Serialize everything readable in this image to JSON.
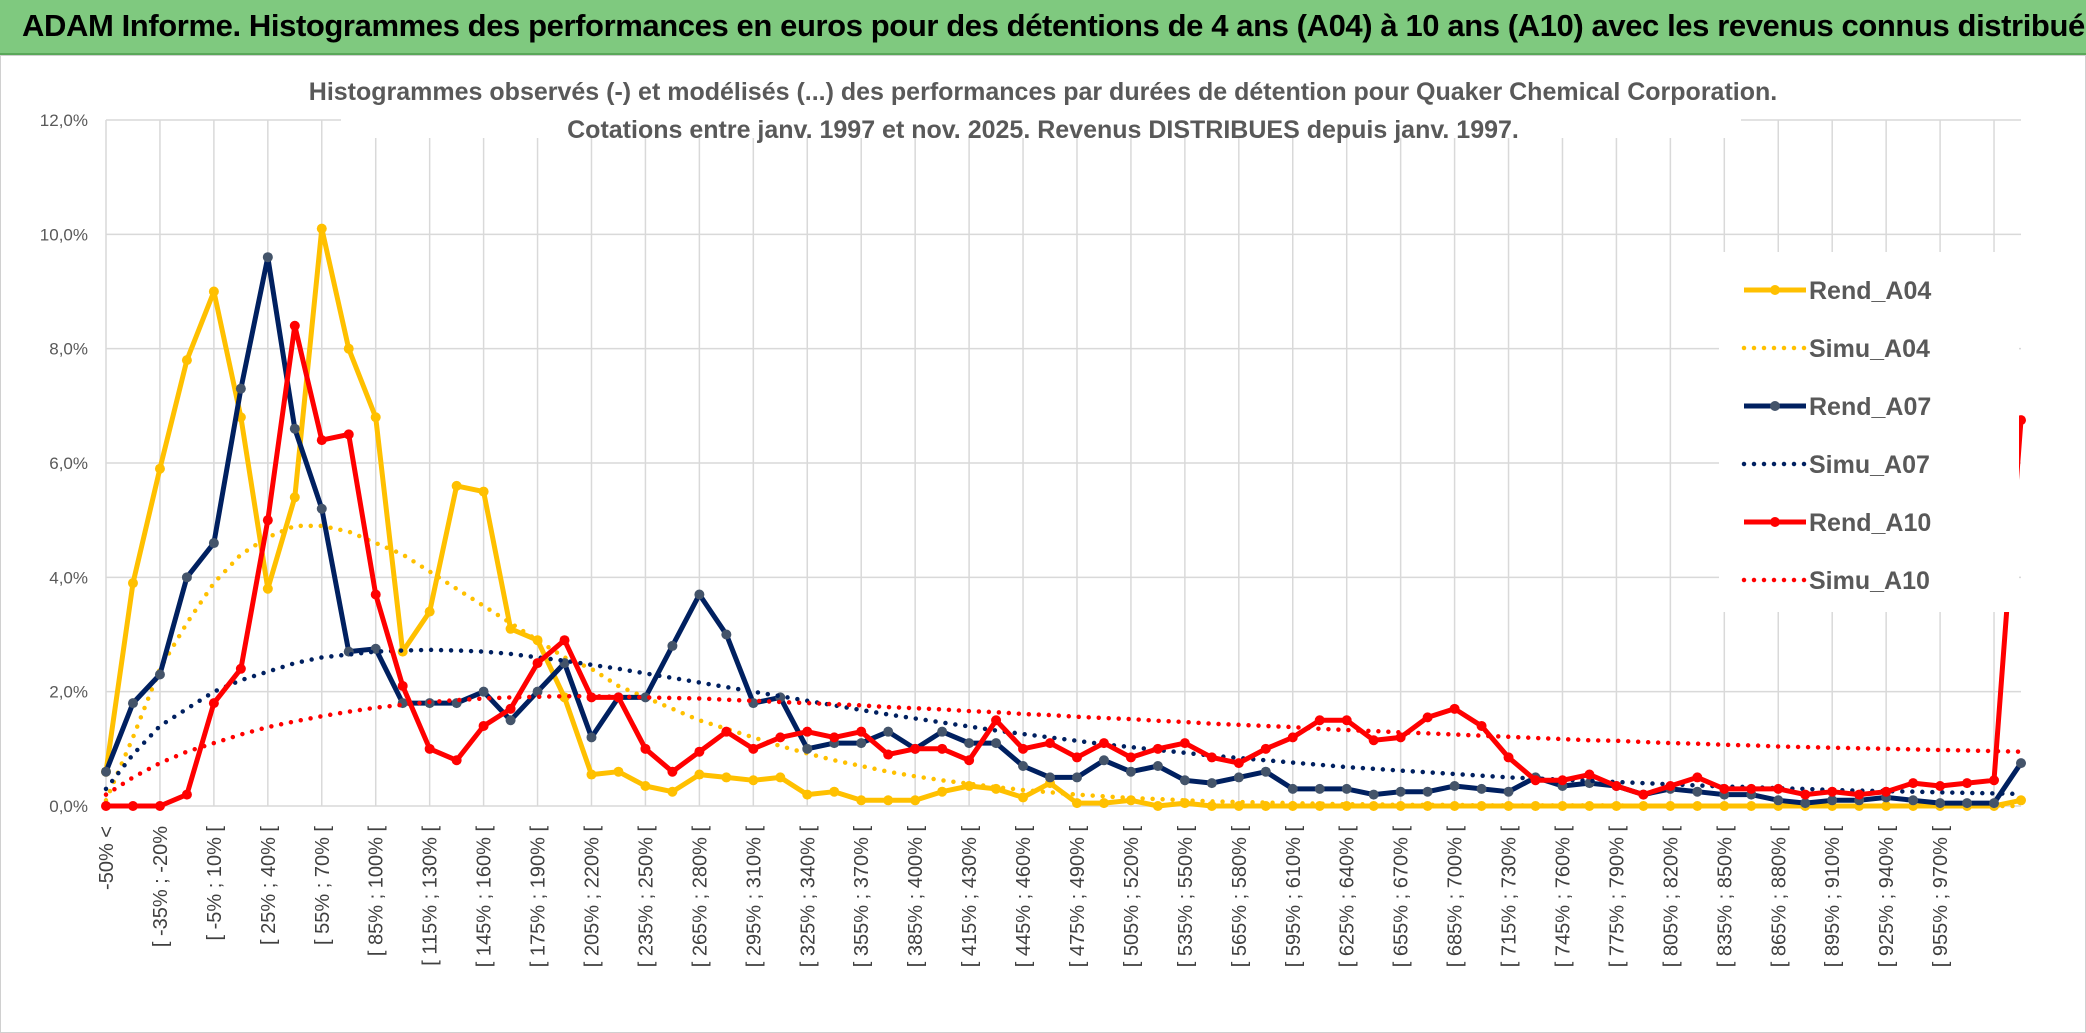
{
  "banner": {
    "title": "ADAM Informe. Histogrammes des performances en euros pour des détentions de 4 ans (A04) à 10 ans (A10) avec les revenus connus distribués",
    "background": "#7fc97f"
  },
  "chart_data": {
    "type": "line",
    "title": "Histogrammes observés (-) et modélisés (...) des performances par durées de détention pour Quaker Chemical Corporation.",
    "subtitle": "Cotations entre janv. 1997 et nov. 2025. Revenus DISTRIBUES depuis janv. 1997.",
    "xlabel": "",
    "ylabel": "",
    "ylim": [
      0,
      12
    ],
    "y_ticks": [
      "0,0%",
      "2,0%",
      "4,0%",
      "6,0%",
      "8,0%",
      "10,0%",
      "12,0%"
    ],
    "grid": true,
    "legend_position": "right",
    "x_tick_labels": [
      "-50% <",
      "[ -35% ; -20%",
      "[ -5% ; 10% [",
      "[ 25% ; 40% [",
      "[ 55% ; 70% [",
      "[ 85% ; 100% [",
      "[ 115% ; 130% [",
      "[ 145% ; 160% [",
      "[ 175% ; 190% [",
      "[ 205% ; 220% [",
      "[ 235% ; 250% [",
      "[ 265% ; 280% [",
      "[ 295% ; 310% [",
      "[ 325% ; 340% [",
      "[ 355% ; 370% [",
      "[ 385% ; 400% [",
      "[ 415% ; 430% [",
      "[ 445% ; 460% [",
      "[ 475% ; 490% [",
      "[ 505% ; 520% [",
      "[ 535% ; 550% [",
      "[ 565% ; 580% [",
      "[ 595% ; 610% [",
      "[ 625% ; 640% [",
      "[ 655% ; 670% [",
      "[ 685% ; 700% [",
      "[ 715% ; 730% [",
      "[ 745% ; 760% [",
      "[ 775% ; 790% [",
      "[ 805% ; 820% [",
      "[ 835% ; 850% [",
      "[ 865% ; 880% [",
      "[ 895% ; 910% [",
      "[ 925% ; 940% [",
      "[ 955% ; 970% ["
    ],
    "n_categories": 72,
    "series": [
      {
        "name": "Rend_A04",
        "style": "solid",
        "color": "#ffc000",
        "values": [
          0.6,
          3.9,
          5.9,
          7.8,
          9.0,
          6.8,
          3.8,
          5.4,
          10.1,
          8.0,
          6.8,
          2.7,
          3.4,
          5.6,
          5.5,
          3.1,
          2.9,
          1.9,
          0.55,
          0.6,
          0.35,
          0.25,
          0.55,
          0.5,
          0.45,
          0.5,
          0.2,
          0.25,
          0.1,
          0.1,
          0.1,
          0.25,
          0.35,
          0.3,
          0.15,
          0.4,
          0.05,
          0.05,
          0.1,
          0.0,
          0.05,
          0.0,
          0.0,
          0.0,
          0.0,
          0.0,
          0.0,
          0.0,
          0.0,
          0.0,
          0.0,
          0.0,
          0.0,
          0.0,
          0.0,
          0.0,
          0.0,
          0.0,
          0.0,
          0.0,
          0.0,
          0.0,
          0.0,
          0.0,
          0.0,
          0.0,
          0.0,
          0.0,
          0.0,
          0.0,
          0.0,
          0.1
        ]
      },
      {
        "name": "Simu_A04",
        "style": "dotted",
        "color": "#ffc000",
        "values": [
          0.1,
          1.2,
          2.4,
          3.2,
          3.9,
          4.4,
          4.7,
          4.9,
          4.9,
          4.8,
          4.6,
          4.4,
          4.1,
          3.8,
          3.5,
          3.2,
          2.9,
          2.6,
          2.4,
          2.1,
          1.9,
          1.7,
          1.5,
          1.35,
          1.2,
          1.05,
          0.92,
          0.8,
          0.7,
          0.6,
          0.52,
          0.45,
          0.39,
          0.33,
          0.28,
          0.24,
          0.2,
          0.17,
          0.14,
          0.12,
          0.1,
          0.08,
          0.07,
          0.06,
          0.05,
          0.04,
          0.03,
          0.03,
          0.02,
          0.02,
          0.02,
          0.01,
          0.01,
          0.01,
          0.01,
          0.01,
          0.01,
          0.0,
          0.0,
          0.0,
          0.0,
          0.0,
          0.0,
          0.0,
          0.0,
          0.0,
          0.0,
          0.0,
          0.0,
          0.0,
          0.0,
          0.0
        ]
      },
      {
        "name": "Rend_A07",
        "style": "solid",
        "color": "#002060",
        "values": [
          0.6,
          1.8,
          2.3,
          4.0,
          4.6,
          7.3,
          9.6,
          6.6,
          5.2,
          2.7,
          2.75,
          1.8,
          1.8,
          1.8,
          2.0,
          1.5,
          2.0,
          2.5,
          1.2,
          1.9,
          1.9,
          2.8,
          3.7,
          3.0,
          1.8,
          1.9,
          1.0,
          1.1,
          1.1,
          1.3,
          1.0,
          1.3,
          1.1,
          1.1,
          0.7,
          0.5,
          0.5,
          0.8,
          0.6,
          0.7,
          0.45,
          0.4,
          0.5,
          0.6,
          0.3,
          0.3,
          0.3,
          0.2,
          0.25,
          0.25,
          0.35,
          0.3,
          0.25,
          0.5,
          0.35,
          0.4,
          0.35,
          0.2,
          0.3,
          0.25,
          0.2,
          0.2,
          0.1,
          0.05,
          0.1,
          0.1,
          0.15,
          0.1,
          0.05,
          0.05,
          0.05,
          0.75
        ]
      },
      {
        "name": "Simu_A07",
        "style": "dotted",
        "color": "#002060",
        "values": [
          0.3,
          0.9,
          1.4,
          1.7,
          2.0,
          2.2,
          2.35,
          2.5,
          2.6,
          2.65,
          2.7,
          2.72,
          2.73,
          2.72,
          2.7,
          2.66,
          2.6,
          2.54,
          2.47,
          2.4,
          2.32,
          2.24,
          2.16,
          2.08,
          2.0,
          1.92,
          1.84,
          1.76,
          1.68,
          1.6,
          1.53,
          1.46,
          1.39,
          1.32,
          1.26,
          1.2,
          1.14,
          1.08,
          1.03,
          0.98,
          0.93,
          0.88,
          0.84,
          0.8,
          0.76,
          0.72,
          0.68,
          0.65,
          0.62,
          0.59,
          0.56,
          0.53,
          0.5,
          0.48,
          0.46,
          0.44,
          0.42,
          0.4,
          0.38,
          0.36,
          0.34,
          0.33,
          0.31,
          0.3,
          0.28,
          0.27,
          0.26,
          0.25,
          0.24,
          0.23,
          0.22,
          0.21
        ]
      },
      {
        "name": "Rend_A10",
        "style": "solid",
        "color": "#ff0000",
        "values": [
          0.0,
          0.0,
          0.0,
          0.2,
          1.8,
          2.4,
          5.0,
          8.4,
          6.4,
          6.5,
          3.7,
          2.1,
          1.0,
          0.8,
          1.4,
          1.7,
          2.5,
          2.9,
          1.9,
          1.9,
          1.0,
          0.6,
          0.95,
          1.3,
          1.0,
          1.2,
          1.3,
          1.2,
          1.3,
          0.9,
          1.0,
          1.0,
          0.8,
          1.5,
          1.0,
          1.1,
          0.85,
          1.1,
          0.85,
          1.0,
          1.1,
          0.85,
          0.75,
          1.0,
          1.2,
          1.5,
          1.5,
          1.15,
          1.2,
          1.55,
          1.7,
          1.4,
          0.85,
          0.45,
          0.45,
          0.55,
          0.35,
          0.2,
          0.35,
          0.5,
          0.3,
          0.3,
          0.3,
          0.2,
          0.25,
          0.2,
          0.25,
          0.4,
          0.35,
          0.4,
          0.45,
          6.75
        ]
      },
      {
        "name": "Simu_A10",
        "style": "dotted",
        "color": "#ff0000",
        "values": [
          0.2,
          0.5,
          0.75,
          0.95,
          1.1,
          1.25,
          1.38,
          1.48,
          1.57,
          1.65,
          1.72,
          1.77,
          1.82,
          1.85,
          1.88,
          1.9,
          1.91,
          1.92,
          1.92,
          1.91,
          1.9,
          1.89,
          1.88,
          1.86,
          1.84,
          1.82,
          1.8,
          1.78,
          1.76,
          1.73,
          1.71,
          1.69,
          1.66,
          1.64,
          1.61,
          1.59,
          1.56,
          1.54,
          1.52,
          1.49,
          1.47,
          1.44,
          1.42,
          1.4,
          1.38,
          1.35,
          1.33,
          1.31,
          1.29,
          1.27,
          1.25,
          1.23,
          1.21,
          1.19,
          1.17,
          1.15,
          1.14,
          1.12,
          1.1,
          1.09,
          1.07,
          1.06,
          1.04,
          1.03,
          1.02,
          1.01,
          1.0,
          0.99,
          0.98,
          0.97,
          0.96,
          0.95
        ]
      }
    ]
  }
}
